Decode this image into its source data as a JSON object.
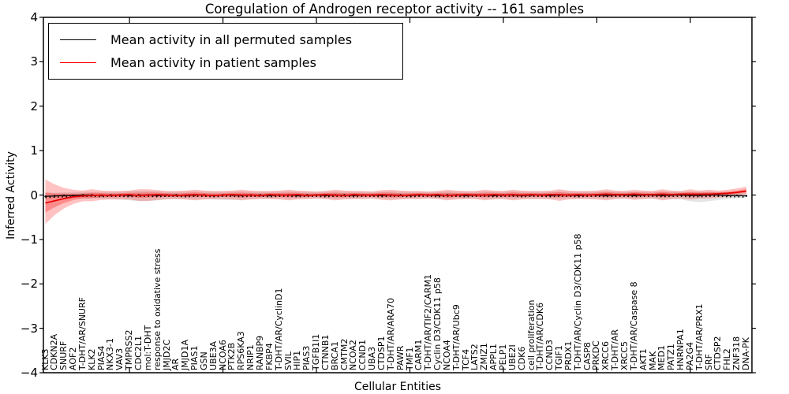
{
  "chart_data": {
    "type": "line",
    "title": "Coregulation of Androgen receptor activity -- 161 samples",
    "xlabel": "Cellular Entities",
    "ylabel": "Inferred Activity",
    "ylim": [
      -4,
      4
    ],
    "yticks": [
      4,
      3,
      2,
      1,
      0,
      -1,
      -2,
      -3,
      -4
    ],
    "xticks": [
      10,
      20,
      30,
      40,
      50,
      60,
      70
    ],
    "grid": false,
    "legend_position": "upper left",
    "categories": [
      "KLK3",
      "CDKN2A",
      "SNURF",
      "AOF2",
      "T-DHT/AR/SNURF",
      "KLK2",
      "PIAS4",
      "NKX3-1",
      "VAV3",
      "TMPRSS2",
      "CDC2L1",
      "mol:T-DHT",
      "response to oxidative stress",
      "JMJD2C",
      "AR",
      "JMJD1A",
      "PIAS1",
      "GSN",
      "UBE3A",
      "NCOA6",
      "PTK2B",
      "RPS6KA3",
      "NRIP1",
      "RANBP9",
      "FKBP4",
      "T-DHT/AR/CyclinD1",
      "SVIL",
      "HIP1",
      "PIAS3",
      "TGFB1I1",
      "CTNNB1",
      "BRCA1",
      "CMTM2",
      "NCOA2",
      "CCND1",
      "UBA3",
      "CTDSP1",
      "T-DHT/AR/ARA70",
      "PAWR",
      "TMF1",
      "CARM1",
      "T-DHT/AR/TIF2/CARM1",
      "Cyclin D3/CDK11 p58",
      "NCOA4",
      "T-DHT/AR/Ubc9",
      "TCF4",
      "LATS2",
      "ZMIZ1",
      "APPL1",
      "PELP1",
      "UBE2I",
      "CDK6",
      "cell proliferation",
      "T-DHT/AR/CDK6",
      "CCND3",
      "TGIF1",
      "PRDX1",
      "T-DHT/AR/Cyclin D3/CDK11 p58",
      "CASP8",
      "PRKDC",
      "XRCC6",
      "T-DHT/AR",
      "XRCC5",
      "T-DHT/AR/Caspase 8",
      "AKT1",
      "MAK",
      "MED1",
      "PATZ1",
      "HNRNPA1",
      "PA2G4",
      "T-DHT/AR/PRX1",
      "SRF",
      "CTDSP2",
      "FHL2",
      "ZNF318",
      "DNA-PK"
    ],
    "series": [
      {
        "name": "Mean activity in all permuted samples",
        "color": "#000000",
        "band_color": "#bbbbbb",
        "values": [
          -0.03,
          -0.02,
          -0.01,
          -0.01,
          0.0,
          0.0,
          -0.01,
          0.0,
          0.0,
          -0.01,
          0.0,
          0.0,
          -0.01,
          0.0,
          0.0,
          -0.01,
          0.0,
          0.0,
          -0.01,
          0.0,
          0.0,
          -0.01,
          0.0,
          0.0,
          -0.01,
          0.0,
          0.0,
          -0.01,
          0.0,
          0.0,
          -0.01,
          0.0,
          0.0,
          -0.01,
          0.0,
          0.0,
          -0.01,
          0.0,
          0.0,
          -0.01,
          0.0,
          0.0,
          -0.01,
          0.0,
          0.0,
          -0.01,
          0.0,
          0.0,
          -0.01,
          0.0,
          0.0,
          -0.01,
          0.0,
          0.0,
          -0.01,
          0.0,
          0.0,
          -0.01,
          0.0,
          0.0,
          -0.01,
          0.0,
          0.0,
          -0.01,
          0.0,
          0.0,
          -0.01,
          0.0,
          0.0,
          -0.01,
          -0.01,
          0.0,
          0.0,
          -0.01,
          -0.01,
          -0.02
        ],
        "band_upper": [
          0.05,
          0.05,
          0.06,
          0.06,
          0.07,
          0.07,
          0.07,
          0.08,
          0.08,
          0.09,
          0.1,
          0.1,
          0.09,
          0.08,
          0.08,
          0.08,
          0.09,
          0.08,
          0.08,
          0.08,
          0.08,
          0.09,
          0.08,
          0.08,
          0.08,
          0.08,
          0.09,
          0.08,
          0.08,
          0.07,
          0.08,
          0.09,
          0.08,
          0.08,
          0.08,
          0.07,
          0.08,
          0.09,
          0.08,
          0.08,
          0.08,
          0.07,
          0.08,
          0.09,
          0.08,
          0.08,
          0.08,
          0.09,
          0.08,
          0.08,
          0.09,
          0.08,
          0.08,
          0.08,
          0.08,
          0.09,
          0.08,
          0.08,
          0.08,
          0.08,
          0.09,
          0.08,
          0.08,
          0.08,
          0.08,
          0.08,
          0.09,
          0.08,
          0.08,
          0.08,
          0.08,
          0.08,
          0.07,
          0.07,
          0.06,
          0.05
        ],
        "band_lower": [
          -0.05,
          -0.05,
          -0.06,
          -0.07,
          -0.08,
          -0.08,
          -0.08,
          -0.09,
          -0.1,
          -0.12,
          -0.14,
          -0.14,
          -0.12,
          -0.1,
          -0.09,
          -0.09,
          -0.1,
          -0.09,
          -0.1,
          -0.11,
          -0.11,
          -0.1,
          -0.09,
          -0.08,
          -0.08,
          -0.08,
          -0.09,
          -0.08,
          -0.08,
          -0.07,
          -0.08,
          -0.09,
          -0.08,
          -0.08,
          -0.08,
          -0.07,
          -0.08,
          -0.09,
          -0.08,
          -0.08,
          -0.08,
          -0.07,
          -0.08,
          -0.09,
          -0.08,
          -0.08,
          -0.08,
          -0.09,
          -0.08,
          -0.08,
          -0.09,
          -0.08,
          -0.08,
          -0.08,
          -0.08,
          -0.09,
          -0.08,
          -0.08,
          -0.08,
          -0.08,
          -0.09,
          -0.08,
          -0.08,
          -0.08,
          -0.08,
          -0.08,
          -0.09,
          -0.09,
          -0.1,
          -0.14,
          -0.16,
          -0.14,
          -0.11,
          -0.09,
          -0.07,
          -0.05
        ]
      },
      {
        "name": "Mean activity in patient samples",
        "color": "#e60000",
        "band_color": "#ff0000",
        "inner_band_scale": 0.45,
        "values": [
          -0.18,
          -0.13,
          -0.08,
          -0.04,
          -0.02,
          -0.01,
          0.0,
          -0.01,
          0.0,
          0.01,
          -0.01,
          0.0,
          0.01,
          0.0,
          -0.01,
          0.0,
          0.01,
          0.0,
          -0.01,
          0.0,
          0.01,
          0.0,
          0.0,
          -0.01,
          0.01,
          0.0,
          0.0,
          0.01,
          -0.01,
          0.0,
          0.01,
          0.0,
          -0.01,
          0.01,
          0.0,
          0.0,
          0.01,
          0.0,
          -0.01,
          0.0,
          0.01,
          0.0,
          0.01,
          -0.01,
          0.0,
          0.01,
          0.0,
          0.0,
          0.01,
          0.0,
          0.01,
          0.0,
          0.01,
          0.0,
          0.01,
          0.01,
          0.0,
          0.01,
          0.0,
          0.01,
          0.02,
          0.01,
          0.01,
          0.02,
          0.01,
          0.01,
          0.02,
          0.01,
          0.02,
          0.02,
          0.02,
          0.02,
          0.03,
          0.04,
          0.06,
          0.09
        ],
        "band_upper": [
          0.35,
          0.24,
          0.16,
          0.12,
          0.1,
          0.13,
          0.1,
          0.09,
          0.09,
          0.1,
          0.13,
          0.13,
          0.11,
          0.09,
          0.09,
          0.1,
          0.12,
          0.1,
          0.09,
          0.09,
          0.1,
          0.12,
          0.1,
          0.09,
          0.09,
          0.1,
          0.12,
          0.1,
          0.09,
          0.08,
          0.09,
          0.12,
          0.1,
          0.09,
          0.09,
          0.08,
          0.11,
          0.12,
          0.1,
          0.09,
          0.09,
          0.08,
          0.09,
          0.12,
          0.1,
          0.09,
          0.09,
          0.12,
          0.1,
          0.09,
          0.12,
          0.1,
          0.09,
          0.09,
          0.1,
          0.13,
          0.1,
          0.09,
          0.09,
          0.1,
          0.13,
          0.1,
          0.09,
          0.12,
          0.1,
          0.09,
          0.13,
          0.1,
          0.09,
          0.13,
          0.1,
          0.12,
          0.1,
          0.12,
          0.15,
          0.19
        ],
        "band_lower": [
          -0.65,
          -0.45,
          -0.3,
          -0.2,
          -0.14,
          -0.14,
          -0.11,
          -0.1,
          -0.1,
          -0.1,
          -0.13,
          -0.13,
          -0.11,
          -0.09,
          -0.09,
          -0.1,
          -0.12,
          -0.1,
          -0.09,
          -0.09,
          -0.1,
          -0.12,
          -0.1,
          -0.09,
          -0.09,
          -0.1,
          -0.12,
          -0.1,
          -0.09,
          -0.08,
          -0.09,
          -0.12,
          -0.1,
          -0.09,
          -0.09,
          -0.08,
          -0.11,
          -0.12,
          -0.1,
          -0.09,
          -0.09,
          -0.08,
          -0.09,
          -0.12,
          -0.1,
          -0.09,
          -0.09,
          -0.12,
          -0.1,
          -0.09,
          -0.12,
          -0.1,
          -0.09,
          -0.09,
          -0.1,
          -0.13,
          -0.1,
          -0.09,
          -0.09,
          -0.1,
          -0.12,
          -0.09,
          -0.08,
          -0.11,
          -0.09,
          -0.08,
          -0.12,
          -0.09,
          -0.08,
          -0.1,
          -0.08,
          -0.08,
          -0.06,
          -0.04,
          -0.01,
          0.02
        ]
      }
    ]
  }
}
